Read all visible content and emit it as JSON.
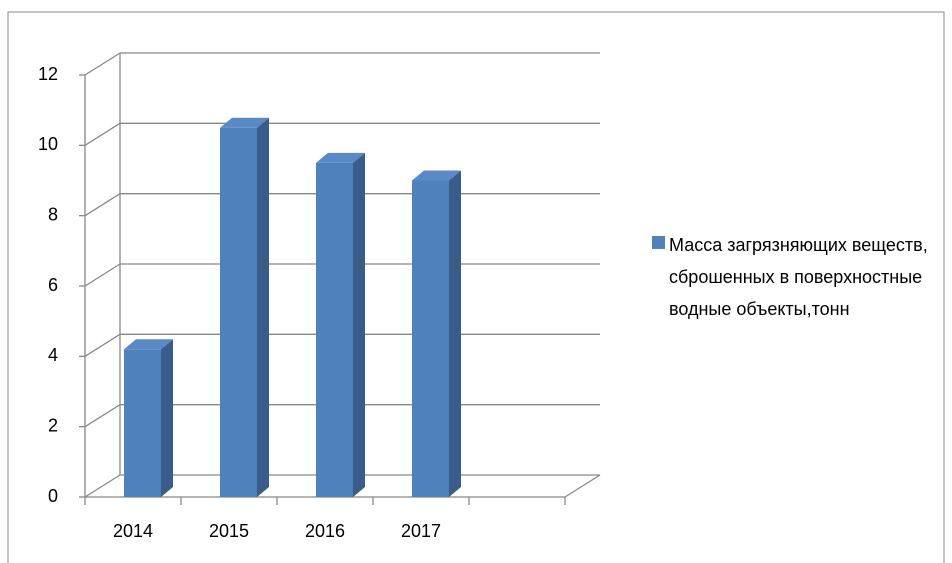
{
  "chart_data": {
    "type": "bar3d",
    "categories": [
      "2014",
      "2015",
      "2016",
      "2017"
    ],
    "series": [
      {
        "name": "Масса загрязняющих веществ, сброшенных в поверхностные водные объекты,тонн",
        "color": "#4f81bd",
        "values": [
          4.2,
          10.5,
          9.5,
          9.0
        ]
      }
    ],
    "ylim": [
      0,
      12
    ],
    "yticks": [
      0,
      2,
      4,
      6,
      8,
      10,
      12
    ],
    "grid": true,
    "legend": "right"
  }
}
